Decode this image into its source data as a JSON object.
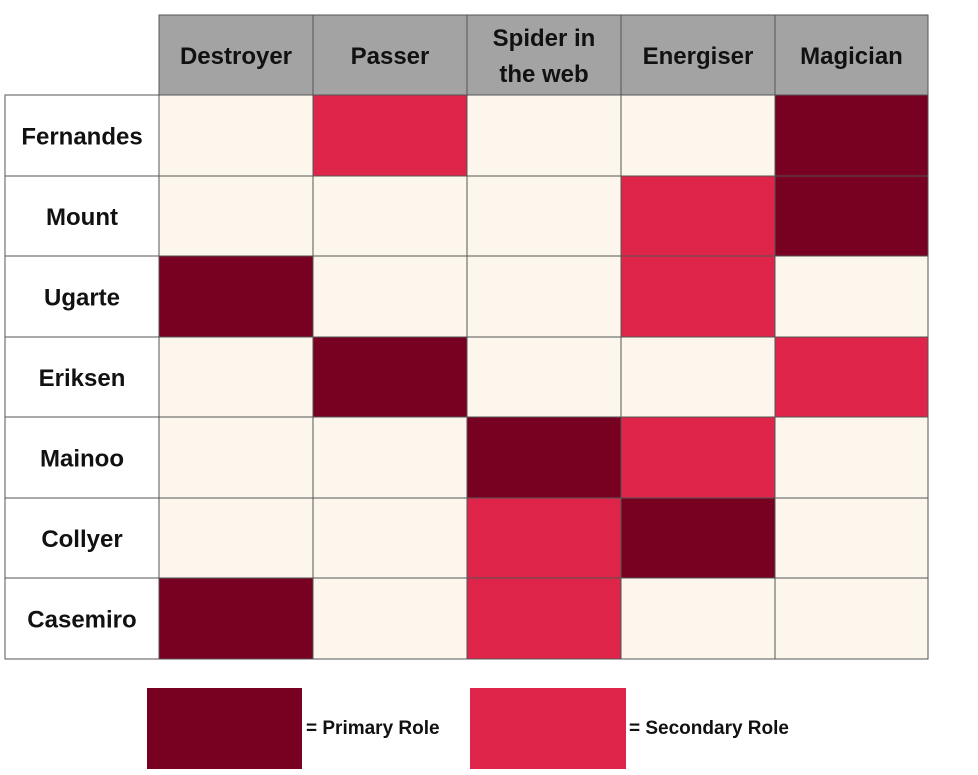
{
  "chart_data": {
    "type": "heatmap",
    "columns": [
      "Destroyer",
      "Passer",
      "Spider in the web",
      "Energiser",
      "Magician"
    ],
    "column_lines": [
      [
        "Destroyer"
      ],
      [
        "Passer"
      ],
      [
        "Spider in",
        "the web"
      ],
      [
        "Energiser"
      ],
      [
        "Magician"
      ]
    ],
    "rows": [
      "Fernandes",
      "Mount",
      "Ugarte",
      "Eriksen",
      "Mainoo",
      "Collyer",
      "Casemiro"
    ],
    "levels": {
      "none": 0,
      "primary": 2,
      "secondary": 1
    },
    "values": [
      [
        0,
        1,
        0,
        0,
        2
      ],
      [
        0,
        0,
        0,
        1,
        2
      ],
      [
        2,
        0,
        0,
        1,
        0
      ],
      [
        0,
        2,
        0,
        0,
        1
      ],
      [
        0,
        0,
        2,
        1,
        0
      ],
      [
        0,
        0,
        1,
        2,
        0
      ],
      [
        2,
        0,
        1,
        0,
        0
      ]
    ],
    "colors": {
      "header_bg": "#a3a3a3",
      "none": "#fcf6ec",
      "secondary": "#de2449",
      "primary": "#780020",
      "grid": "#555555"
    },
    "legend": [
      {
        "label": "= Primary Role",
        "level": 2
      },
      {
        "label": "= Secondary Role",
        "level": 1
      }
    ]
  }
}
